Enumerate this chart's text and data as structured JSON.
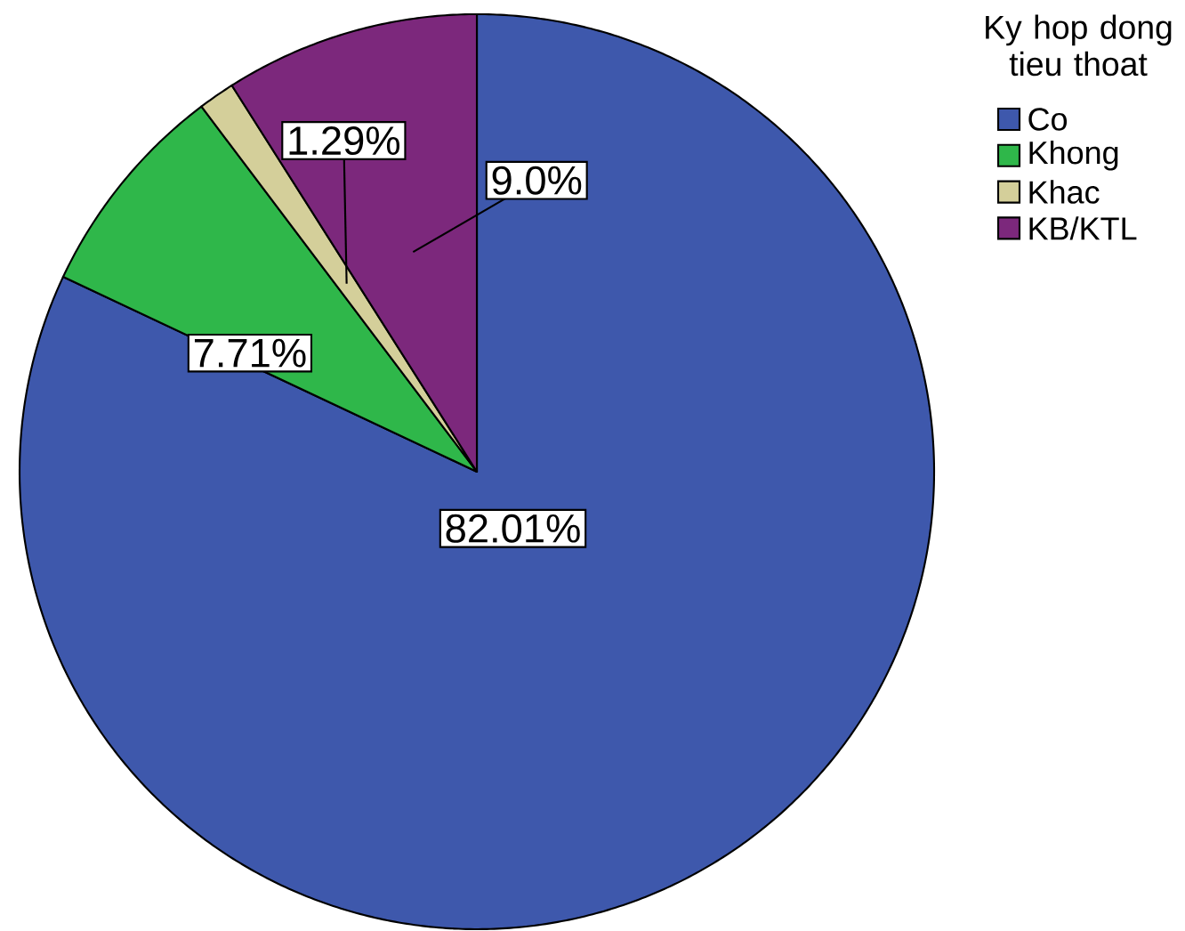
{
  "chart_data": {
    "type": "pie",
    "legend_title": "Ky hop dong tieu thoat",
    "legend": "top right",
    "categories": [
      "Co",
      "Khong",
      "Khac",
      "KB/KTL"
    ],
    "values": [
      82.01,
      7.71,
      1.29,
      9.0
    ],
    "colors": [
      "#3e58ac",
      "#2fb74a",
      "#d4cf9a",
      "#7c287c"
    ],
    "value_labels": [
      "82.01%",
      "7.71%",
      "1.29%",
      "9.0%"
    ]
  }
}
